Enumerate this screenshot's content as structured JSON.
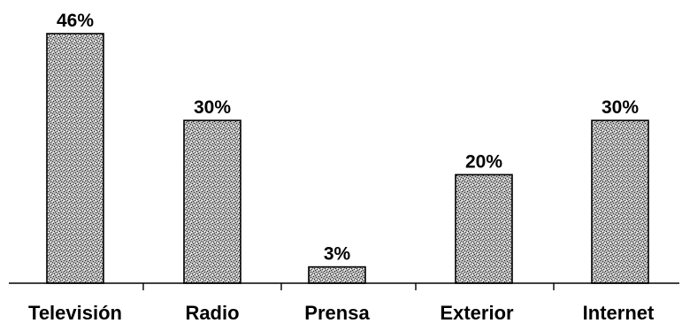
{
  "chart_data": {
    "type": "bar",
    "categories": [
      "Televisión",
      "Radio",
      "Prensa",
      "Exterior",
      "Internet"
    ],
    "values": [
      46,
      30,
      3,
      20,
      30
    ],
    "value_labels": [
      "46%",
      "30%",
      "3%",
      "20%",
      "30%"
    ],
    "unit": "%",
    "ylim": [
      0,
      46
    ],
    "grid": false,
    "legend": "none",
    "bar_pattern_color": "#8a8a8a",
    "bar_border_color": "#000000"
  }
}
